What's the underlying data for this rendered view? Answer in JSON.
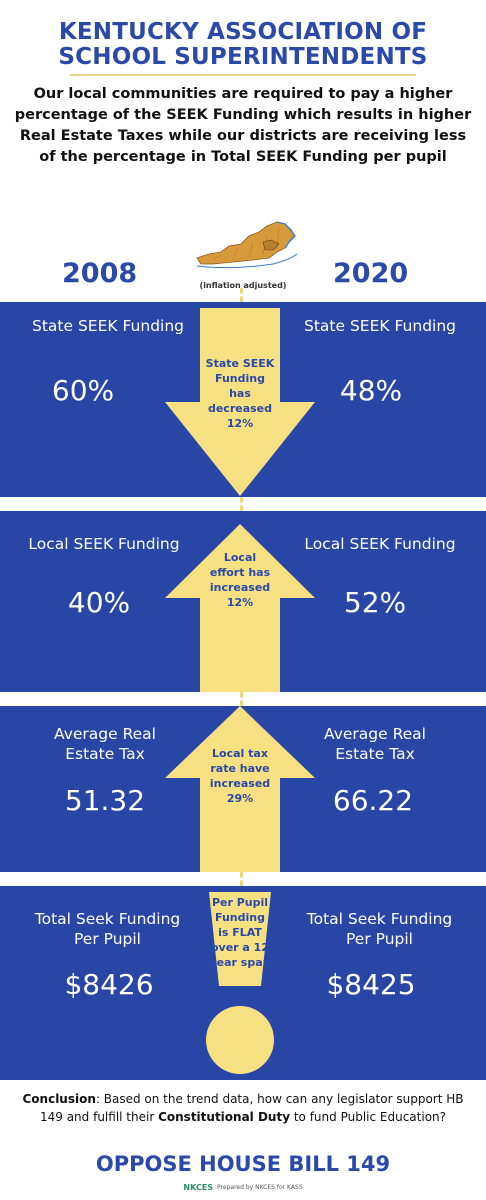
{
  "header": {
    "title_line1": "KENTUCKY ASSOCIATION OF",
    "title_line2": "SCHOOL SUPERINTENDENTS",
    "subtitle": "Our local communities are required to pay a higher percentage of the SEEK Funding which results in higher Real Estate Taxes while our districts are receiving less of the percentage in Total SEEK Funding per pupil"
  },
  "years": {
    "left": "2008",
    "right": "2020"
  },
  "inflation_note": "(inflation adjusted)",
  "sections": [
    {
      "label_left": "State SEEK Funding",
      "value_left": "60%",
      "label_right": "State SEEK Funding",
      "value_right": "48%",
      "arrow_direction": "down",
      "arrow_lines": [
        "State SEEK",
        "Funding",
        "has",
        "decreased",
        "12%"
      ]
    },
    {
      "label_left": "Local SEEK Funding",
      "value_left": "40%",
      "label_right": "Local SEEK Funding",
      "value_right": "52%",
      "arrow_direction": "up",
      "arrow_lines": [
        "Local",
        "effort has",
        "increased",
        "12%"
      ]
    },
    {
      "label_left_line1": "Average Real",
      "label_left_line2": "Estate Tax",
      "value_left": "51.32",
      "label_right_line1": "Average Real",
      "label_right_line2": "Estate Tax",
      "value_right": "66.22",
      "arrow_direction": "up",
      "arrow_lines": [
        "Local tax",
        "rate have",
        "increased",
        "29%"
      ]
    },
    {
      "label_left_line1": "Total Seek Funding",
      "label_left_line2": "Per Pupil",
      "value_left": "$8426",
      "label_right_line1": "Total Seek Funding",
      "label_right_line2": "Per Pupil",
      "value_right": "$8425",
      "arrow_direction": "flat",
      "arrow_lines": [
        "Per Pupil",
        "Funding",
        "is FLAT",
        "over a 12",
        "year span"
      ]
    }
  ],
  "conclusion": {
    "label": "Conclusion",
    "text_part1": ": Based on the trend data, how can any legislator support HB 149 and fulfill their ",
    "emphasis": "Constitutional Duty",
    "text_part2": " to fund Public Education?"
  },
  "cta": "OPPOSE HOUSE BILL 149",
  "footer": {
    "logo": "NKCES",
    "text": "Prepared by NKCES for KASS"
  },
  "colors": {
    "blue": "#2746a6",
    "yellow": "#f7e082",
    "title_blue": "#2a49a8"
  }
}
